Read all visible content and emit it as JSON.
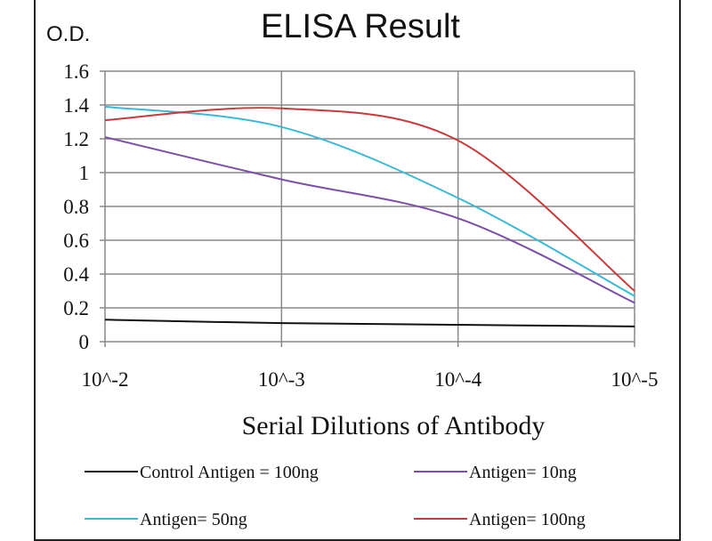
{
  "chart_data": {
    "type": "line",
    "title": "ELISA Result",
    "ylabel": "O.D.",
    "xlabel": "Serial Dilutions  of Antibody",
    "categories": [
      "10^-2",
      "10^-3",
      "10^-4",
      "10^-5"
    ],
    "ylim": [
      0,
      1.6
    ],
    "yticks": [
      "0",
      "0.2",
      "0.4",
      "0.6",
      "0.8",
      "1",
      "1.2",
      "1.4",
      "1.6"
    ],
    "grid": true,
    "legend_placement": "bottom",
    "series": [
      {
        "name": "Control Antigen = 100ng",
        "color": "#111111",
        "values": [
          0.13,
          0.11,
          0.1,
          0.09
        ]
      },
      {
        "name": "Antigen= 10ng",
        "color": "#7b4fa8",
        "values": [
          1.21,
          0.96,
          0.73,
          0.23
        ]
      },
      {
        "name": "Antigen= 50ng",
        "color": "#3ab9d6",
        "values": [
          1.39,
          1.27,
          0.85,
          0.27
        ]
      },
      {
        "name": "Antigen= 100ng",
        "color": "#c83a3a",
        "values": [
          1.31,
          1.38,
          1.19,
          0.3
        ]
      }
    ]
  }
}
